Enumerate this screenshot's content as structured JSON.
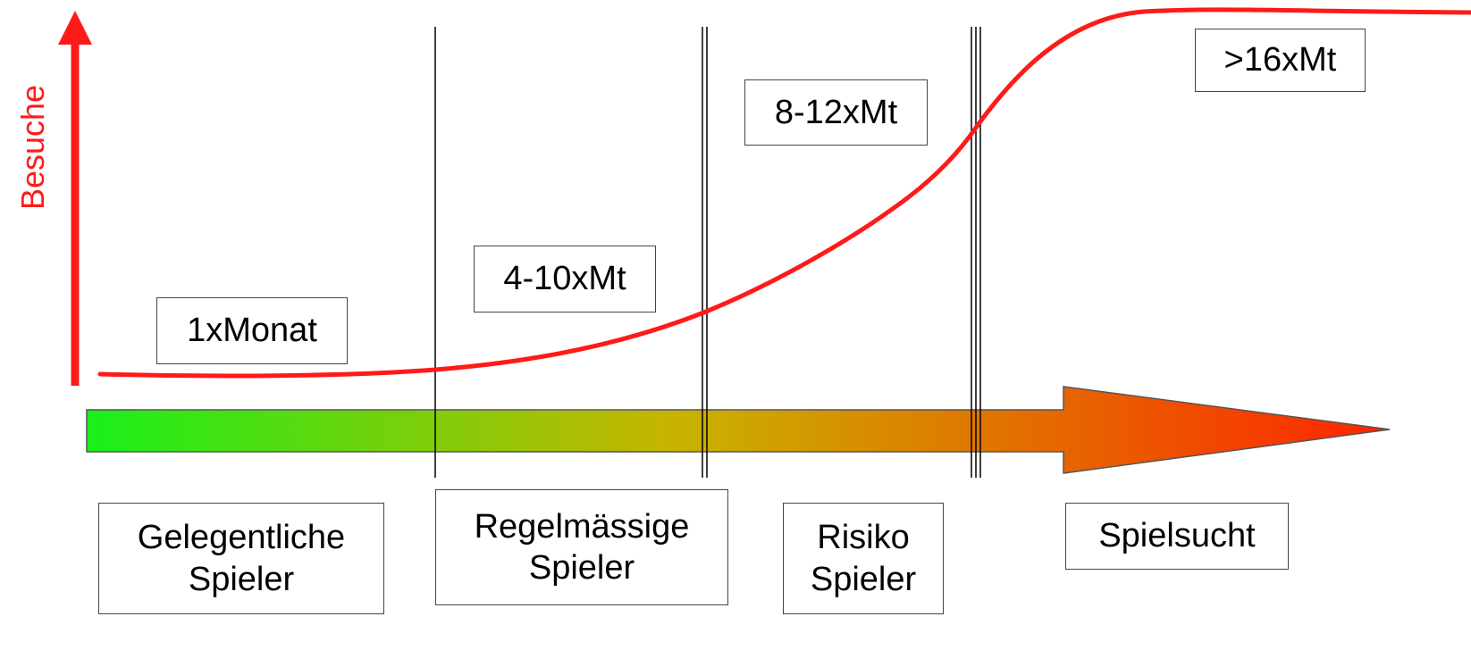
{
  "y_axis_label": "Besuche",
  "frequency_labels": [
    "1xMonat",
    "4-10xMt",
    "8-12xMt",
    ">16xMt"
  ],
  "stages": [
    {
      "line1": "Gelegentliche",
      "line2": "Spieler"
    },
    {
      "line1": "Regelmässige",
      "line2": "Spieler"
    },
    {
      "line1": "Risiko",
      "line2": "Spieler"
    },
    {
      "line1": "Spielsucht",
      "line2": ""
    }
  ],
  "colors": {
    "curve": "#ff1a1a",
    "axis_arrow": "#ff1a1a",
    "gradient_start": "#19f019",
    "gradient_mid": "#c8b400",
    "gradient_end": "#ff2400",
    "divider": "#000000"
  }
}
